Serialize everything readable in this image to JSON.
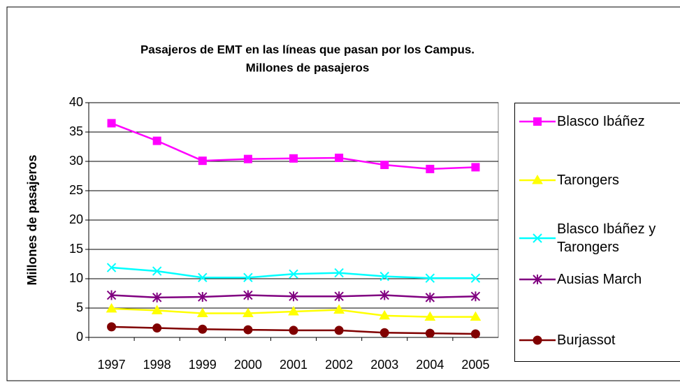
{
  "chart_data": {
    "type": "line",
    "title": "Pasajeros de EMT en las líneas que pasan por los Campus.",
    "subtitle": "Millones de pasajeros",
    "y_label": "Millones de pasajeros",
    "categories": [
      "1997",
      "1998",
      "1999",
      "2000",
      "2001",
      "2002",
      "2003",
      "2004",
      "2005"
    ],
    "series": [
      {
        "name": "Blasco Ibáñez",
        "color": "#ff00ff",
        "marker": "square",
        "values": [
          36.5,
          33.5,
          30.1,
          30.4,
          30.5,
          30.6,
          29.4,
          28.7,
          29.0
        ]
      },
      {
        "name": "Tarongers",
        "color": "#ffff00",
        "marker": "triangle",
        "values": [
          4.9,
          4.6,
          4.1,
          4.1,
          4.4,
          4.7,
          3.7,
          3.5,
          3.5
        ]
      },
      {
        "name": "Blasco Ibáñez y Tarongers",
        "color": "#00ffff",
        "marker": "x",
        "values": [
          11.9,
          11.3,
          10.2,
          10.2,
          10.8,
          11.0,
          10.4,
          10.1,
          10.1
        ]
      },
      {
        "name": "Ausias March",
        "color": "#800080",
        "marker": "star",
        "values": [
          7.2,
          6.8,
          6.9,
          7.2,
          7.0,
          7.0,
          7.2,
          6.8,
          7.0
        ]
      },
      {
        "name": "Burjassot",
        "color": "#800000",
        "marker": "circle",
        "values": [
          1.8,
          1.6,
          1.4,
          1.3,
          1.2,
          1.2,
          0.8,
          0.7,
          0.6
        ]
      }
    ],
    "ylim": [
      0,
      40
    ],
    "yticks": [
      0,
      5,
      10,
      15,
      20,
      25,
      30,
      35,
      40
    ],
    "grid": true,
    "legend": "right"
  }
}
